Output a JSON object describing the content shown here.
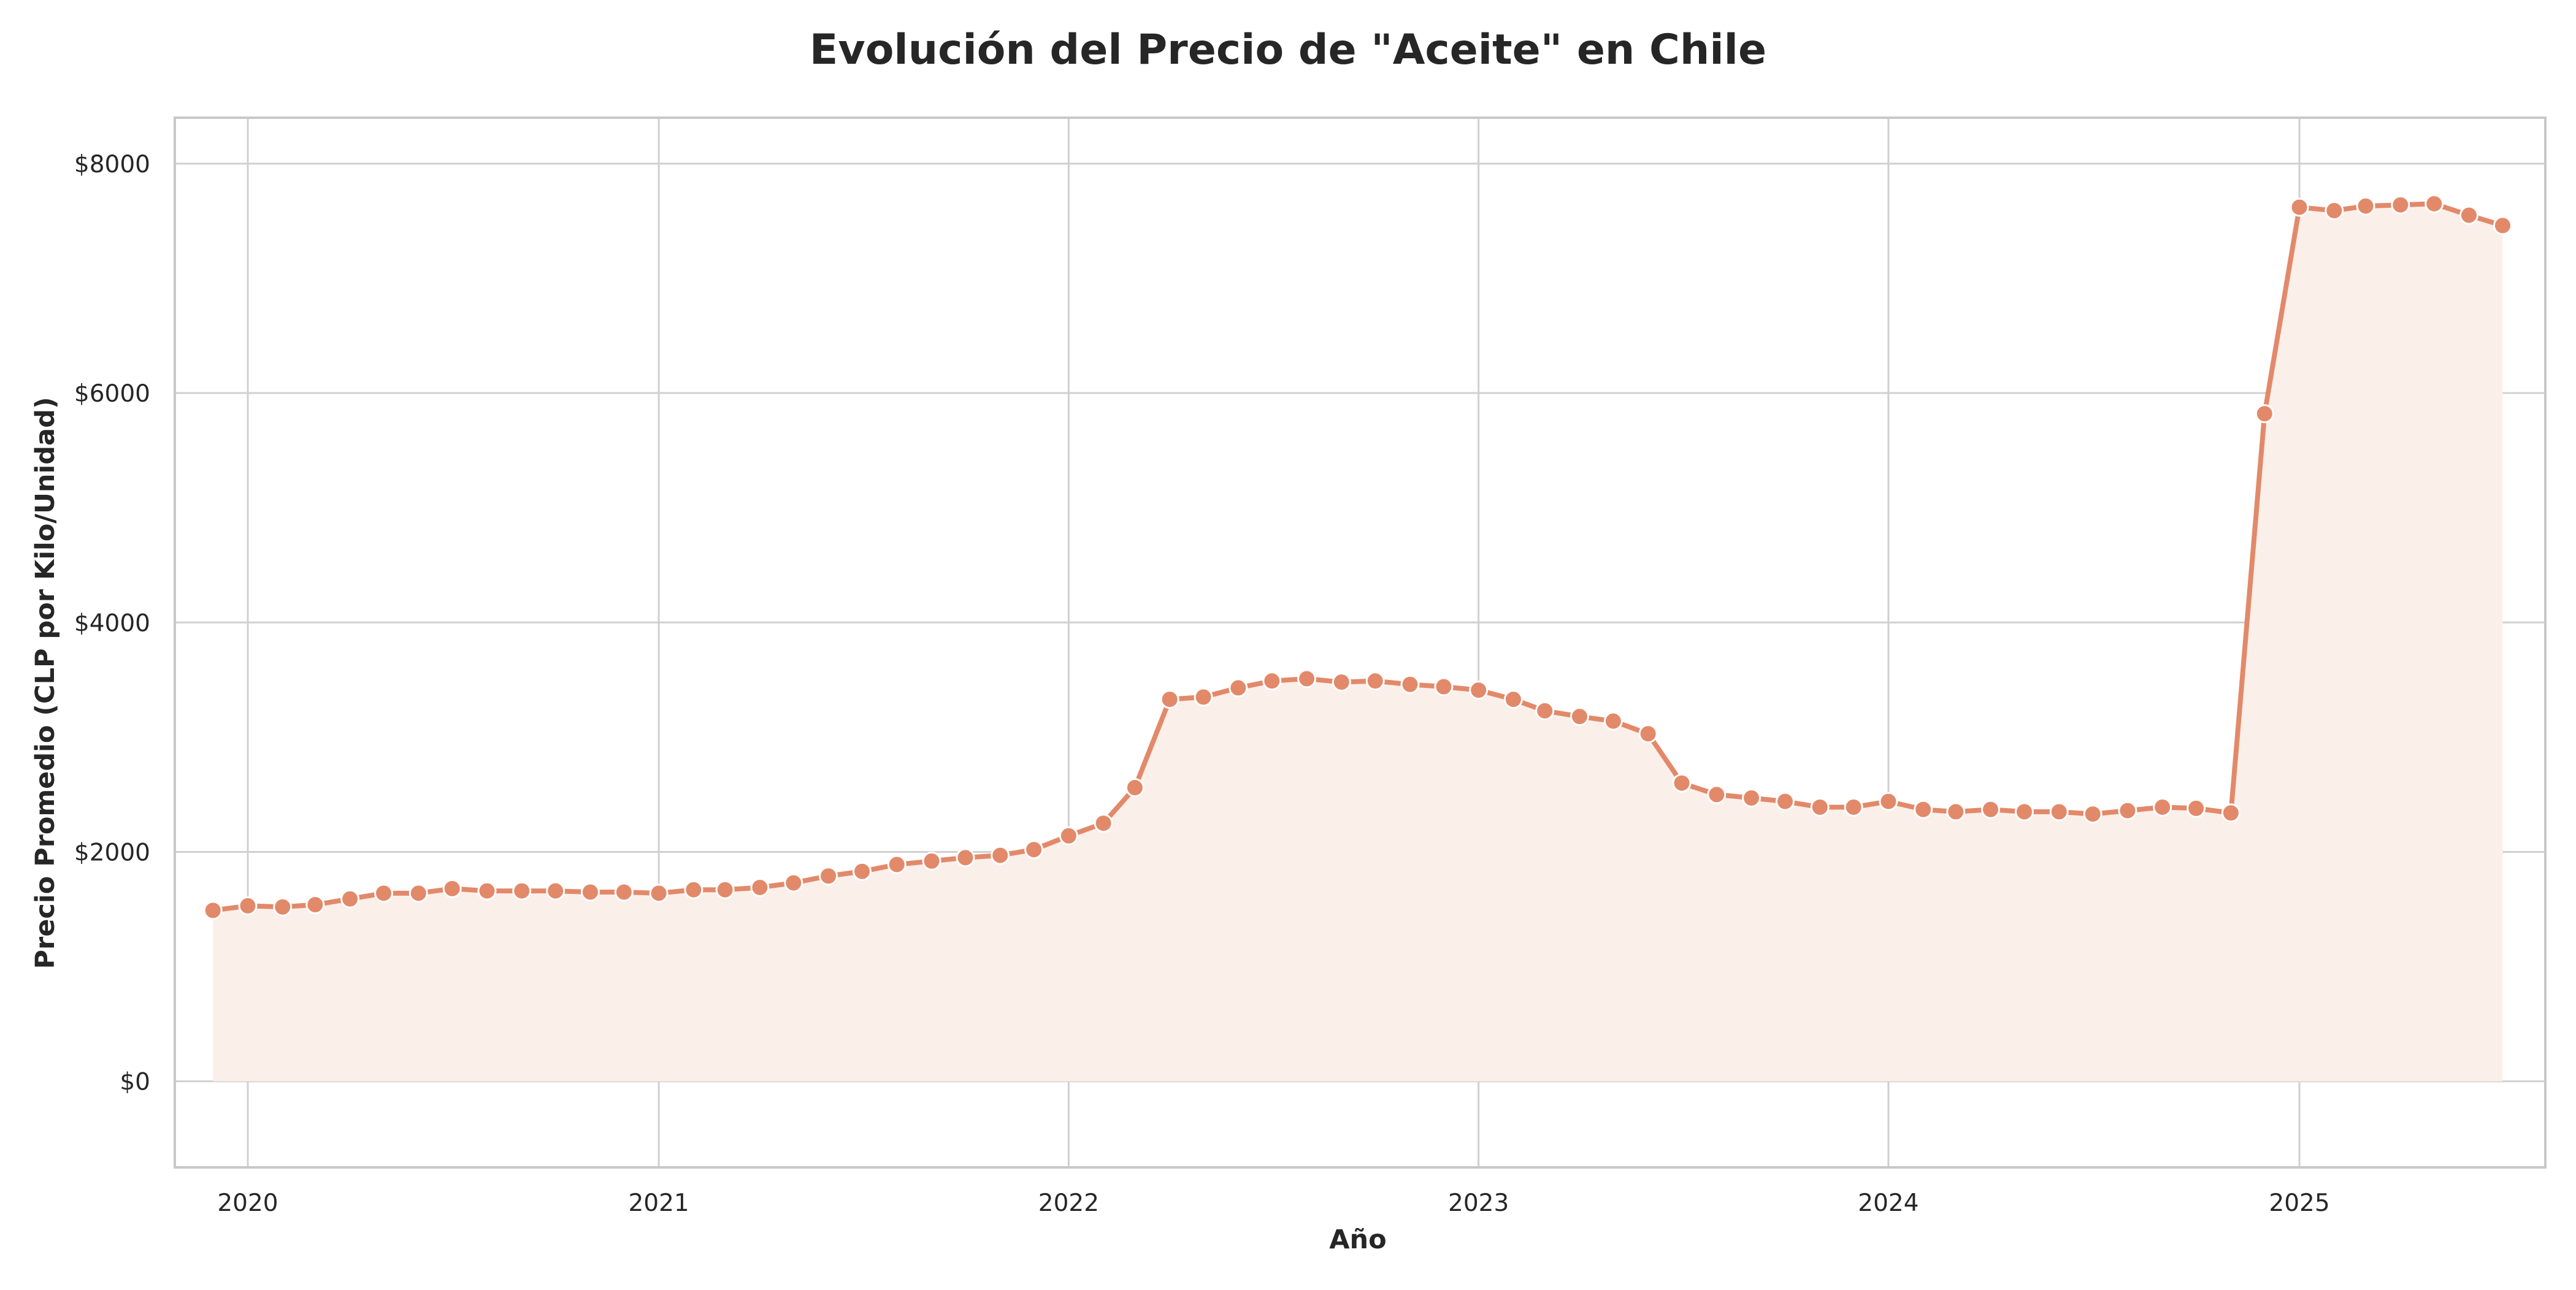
{
  "chart_data": {
    "type": "line",
    "title": "Evolución del Precio de \"Aceite\" en Chile",
    "xlabel": "Año",
    "ylabel": "Precio Promedio (CLP por Kilo/Unidad)",
    "x_ticks": [
      "2020",
      "2021",
      "2022",
      "2023",
      "2024",
      "2025"
    ],
    "y_ticks": [
      "$0",
      "$2000",
      "$4000",
      "$6000",
      "$8000"
    ],
    "ylim": [
      -750,
      8400
    ],
    "xlim": [
      "2019-10-28",
      "2025-08-08"
    ],
    "grid": true,
    "fill_under_line": true,
    "colors": {
      "line": "#e2896a",
      "marker": "#e2896a",
      "fill": "#fbefea"
    },
    "series": [
      {
        "x": [
          "2019-12-01",
          "2020-01-01",
          "2020-02-01",
          "2020-03-01",
          "2020-04-01",
          "2020-05-01",
          "2020-06-01",
          "2020-07-01",
          "2020-08-01",
          "2020-09-01",
          "2020-10-01",
          "2020-11-01",
          "2020-12-01",
          "2021-01-01",
          "2021-02-01",
          "2021-03-01",
          "2021-04-01",
          "2021-05-01",
          "2021-06-01",
          "2021-07-01",
          "2021-08-01",
          "2021-09-01",
          "2021-10-01",
          "2021-11-01",
          "2021-12-01",
          "2022-01-01",
          "2022-02-01",
          "2022-03-01",
          "2022-04-01",
          "2022-05-01",
          "2022-06-01",
          "2022-07-01",
          "2022-08-01",
          "2022-09-01",
          "2022-10-01",
          "2022-11-01",
          "2022-12-01",
          "2023-01-01",
          "2023-02-01",
          "2023-03-01",
          "2023-04-01",
          "2023-05-01",
          "2023-06-01",
          "2023-07-01",
          "2023-08-01",
          "2023-09-01",
          "2023-10-01",
          "2023-11-01",
          "2023-12-01",
          "2024-01-01",
          "2024-02-01",
          "2024-03-01",
          "2024-04-01",
          "2024-05-01",
          "2024-06-01",
          "2024-07-01",
          "2024-08-01",
          "2024-09-01",
          "2024-10-01",
          "2024-11-01",
          "2024-12-01",
          "2025-01-01",
          "2025-02-01",
          "2025-03-01",
          "2025-04-01",
          "2025-05-01",
          "2025-06-01",
          "2025-07-01"
        ],
        "values": [
          1490,
          1530,
          1520,
          1540,
          1590,
          1640,
          1640,
          1680,
          1660,
          1660,
          1660,
          1650,
          1650,
          1640,
          1670,
          1670,
          1690,
          1730,
          1790,
          1830,
          1890,
          1920,
          1950,
          1970,
          2020,
          2140,
          2250,
          2560,
          3330,
          3350,
          3430,
          3490,
          3510,
          3480,
          3490,
          3460,
          3440,
          3410,
          3330,
          3230,
          3180,
          3140,
          3030,
          2600,
          2500,
          2470,
          2440,
          2390,
          2390,
          2440,
          2370,
          2350,
          2370,
          2350,
          2350,
          2330,
          2360,
          2390,
          2380,
          2340,
          5820,
          7620,
          7590,
          7630,
          7640,
          7650,
          7550,
          7460
        ]
      }
    ]
  }
}
